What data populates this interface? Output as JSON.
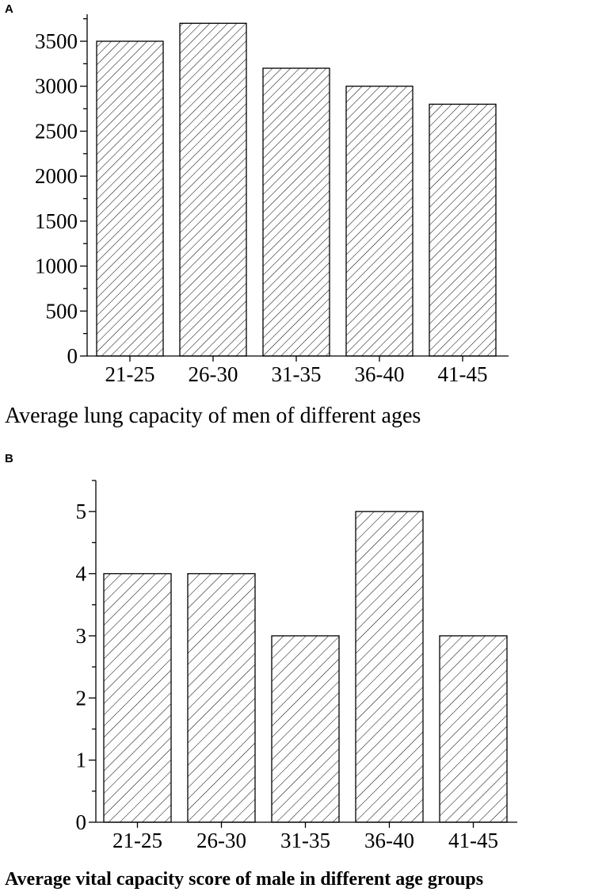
{
  "chart_data": [
    {
      "panel_label": "A",
      "type": "bar",
      "categories": [
        "21-25",
        "26-30",
        "31-35",
        "36-40",
        "41-45"
      ],
      "values": [
        3500,
        3700,
        3200,
        3000,
        2800
      ],
      "caption": "Average lung capacity of men of different ages",
      "xlabel": "",
      "ylabel": "",
      "ylim": [
        0,
        3800
      ],
      "yticks": [
        0,
        500,
        1000,
        1500,
        2000,
        2500,
        3000,
        3500
      ],
      "ytick_labels": [
        "0",
        "500",
        "1000",
        "1500",
        "2000",
        "2500",
        "3000",
        "3500"
      ],
      "minor_ytick_step": 250,
      "grid": false,
      "legend": "none",
      "bar_fill": "diagonal hatch",
      "bar_color": "#000000"
    },
    {
      "panel_label": "B",
      "type": "bar",
      "categories": [
        "21-25",
        "26-30",
        "31-35",
        "36-40",
        "41-45"
      ],
      "values": [
        4,
        4,
        3,
        5,
        3
      ],
      "caption": "Average vital capacity score of male in different age groups",
      "xlabel": "",
      "ylabel": "",
      "ylim": [
        0,
        5.5
      ],
      "yticks": [
        0,
        1,
        2,
        3,
        4,
        5
      ],
      "ytick_labels": [
        "0",
        "1",
        "2",
        "3",
        "4",
        "5"
      ],
      "minor_ytick_step": 0.5,
      "grid": false,
      "legend": "none",
      "bar_fill": "diagonal hatch",
      "bar_color": "#000000"
    }
  ]
}
